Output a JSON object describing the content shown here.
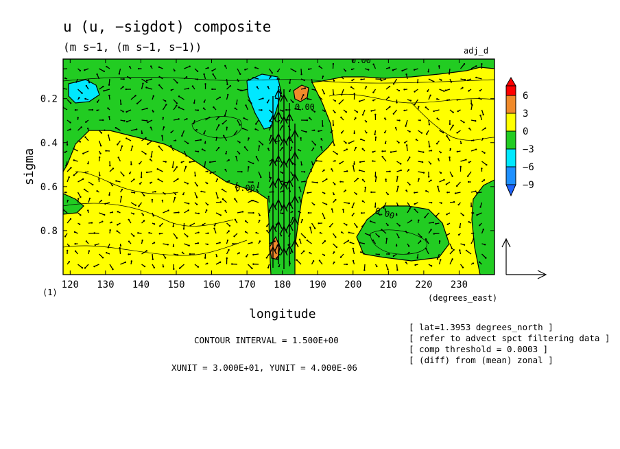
{
  "title": "u (u, −sigdot) composite",
  "subtitle": "(m s−1, (m s−1, s−1))",
  "tag": "adj_d",
  "chart_data": {
    "type": "heatmap",
    "title": "u (u, −sigdot) composite",
    "xlabel": "longitude",
    "x_unit_label": "(degrees_east)",
    "ylabel": "sigma",
    "y_lower_label": "(1)",
    "xlim": [
      118,
      240
    ],
    "ylim": [
      1.0,
      0.02
    ],
    "x_ticks": [
      120,
      130,
      140,
      150,
      160,
      170,
      180,
      190,
      200,
      210,
      220,
      230
    ],
    "x_tick_labels": [
      "120",
      "130",
      "140",
      "150",
      "160",
      "170",
      "180",
      "190",
      "200",
      "210",
      "220",
      "230"
    ],
    "y_ticks": [
      0.2,
      0.4,
      0.6,
      0.8
    ],
    "y_tick_labels": [
      "0.2",
      "0.4",
      "0.6",
      "0.8"
    ],
    "contour_labels": [
      "0.00",
      "0.00",
      "0.00",
      "0.00",
      "0.00"
    ],
    "colorbar": {
      "levels": [
        "6",
        "3",
        "0",
        "−3",
        "−6",
        "−9"
      ],
      "colors": [
        "#ff0000",
        "#f08a2a",
        "#ffff00",
        "#22cc22",
        "#00e8ff",
        "#1e90ff",
        "#1e64ff"
      ]
    },
    "contour_interval": "CONTOUR INTERVAL = 1.500E+00",
    "vector_units": "XUNIT = 3.000E+01, YUNIT = 4.000E-06",
    "field_description": "zonal wind anomaly filled contours with (u, −sigdot) vectors; strong upward flow near 176–184E"
  },
  "notes": [
    "[ lat=1.3953 degrees_north ]",
    "[ refer to advect spct filtering data ]",
    "[ comp threshold = 0.0003 ]",
    "[ (diff) from (mean) zonal ]"
  ]
}
